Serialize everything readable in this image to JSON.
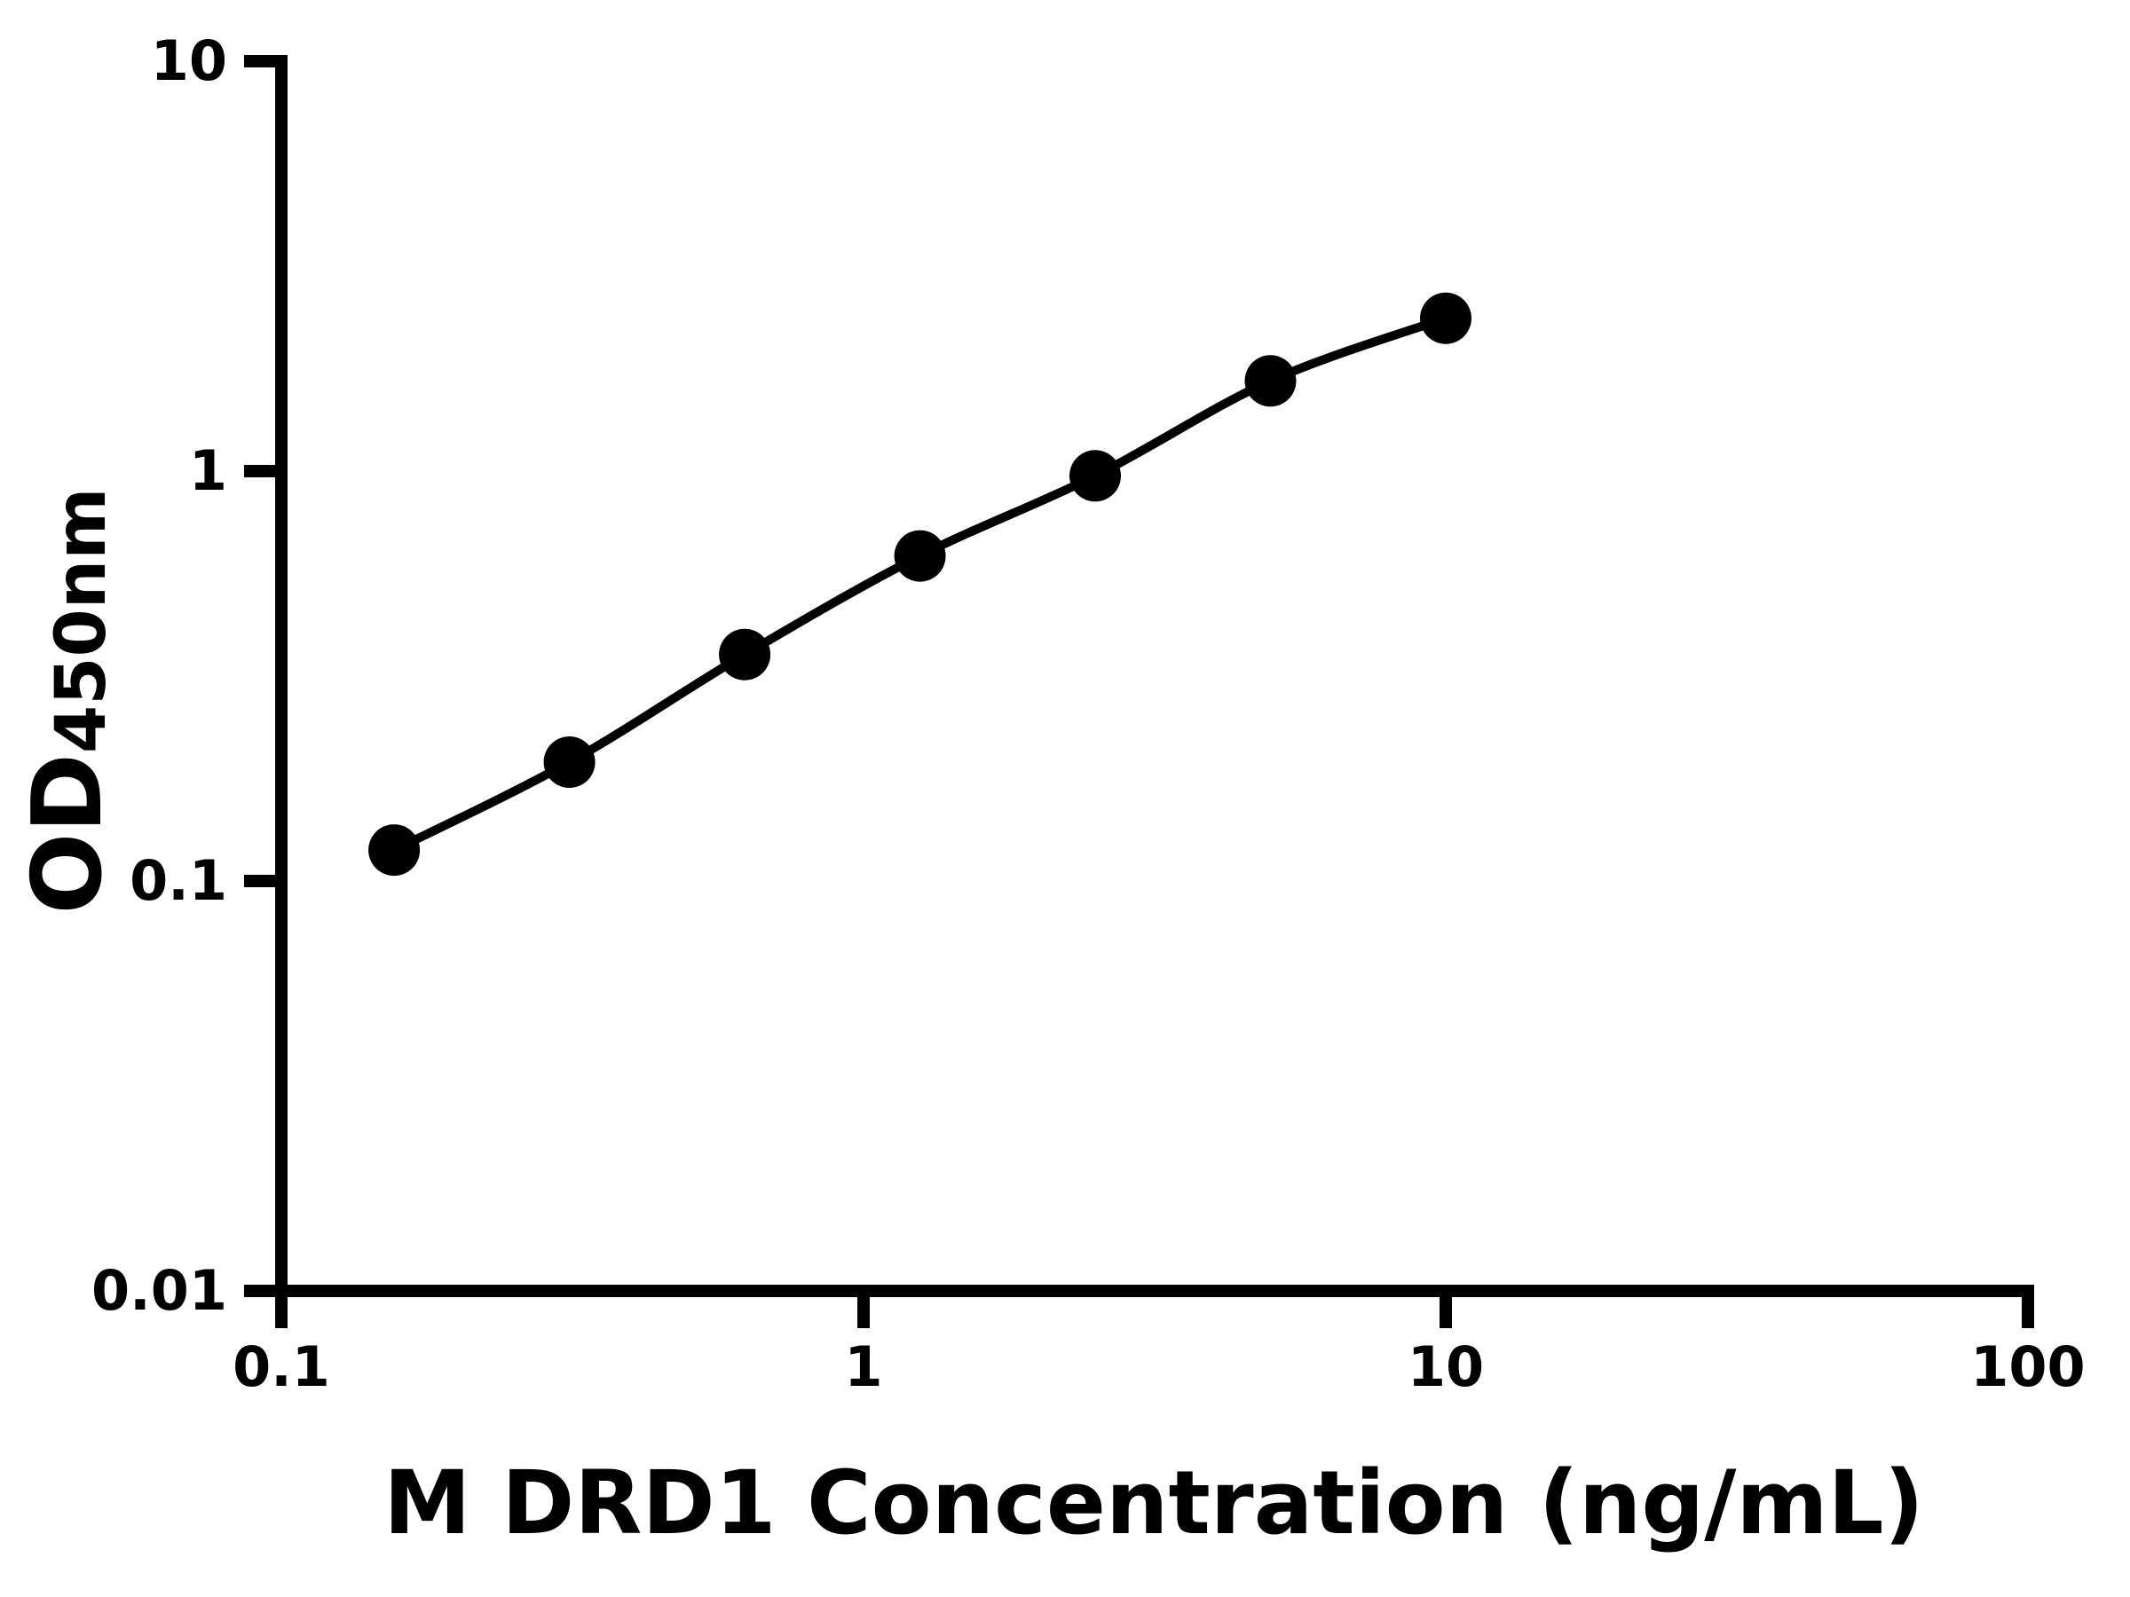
{
  "figure": {
    "background_color": "#ffffff",
    "axis_color": "#000000",
    "text_color": "#000000"
  },
  "chart_data": {
    "type": "scatter",
    "title": "",
    "xlabel": "M DRD1 Concentration (ng/mL)",
    "ylabel": "OD450nm",
    "ylabel_main": "OD",
    "ylabel_sub": "450nm",
    "x_scale": "log",
    "y_scale": "log",
    "xlim": [
      0.1,
      100
    ],
    "ylim": [
      0.01,
      10
    ],
    "grid": false,
    "legend": "none",
    "line_color": "#000000",
    "marker_color": "#000000",
    "marker": "circle",
    "x_ticks": [
      {
        "value": 0.1,
        "label": "0.1"
      },
      {
        "value": 1,
        "label": "1"
      },
      {
        "value": 10,
        "label": "10"
      },
      {
        "value": 100,
        "label": "100"
      }
    ],
    "y_ticks": [
      {
        "value": 10,
        "label": "10"
      },
      {
        "value": 1,
        "label": "1"
      },
      {
        "value": 0.1,
        "label": "0.1"
      },
      {
        "value": 0.01,
        "label": "0.01"
      }
    ],
    "series": [
      {
        "points": [
          {
            "x": 0.15625,
            "y": 0.119
          },
          {
            "x": 0.3125,
            "y": 0.195
          },
          {
            "x": 0.625,
            "y": 0.357
          },
          {
            "x": 1.25,
            "y": 0.621
          },
          {
            "x": 2.5,
            "y": 0.974
          },
          {
            "x": 5,
            "y": 1.66
          },
          {
            "x": 10,
            "y": 2.36
          }
        ]
      }
    ]
  }
}
